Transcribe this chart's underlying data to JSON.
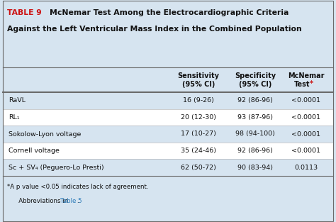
{
  "table_label": "TABLE 9",
  "title_line1": "McNemar Test Among the Electrocardiographic Criteria",
  "title_line2": "Against the Left Ventricular Mass Index in the Combined Population",
  "col_headers_line1": [
    "",
    "Sensitivity",
    "Specificity",
    "McNemar"
  ],
  "col_headers_line2": [
    "",
    "(95% CI)",
    "(95% CI)",
    "Test"
  ],
  "rows": [
    [
      "RaVL",
      "16 (9-26)",
      "92 (86-96)",
      "<0.0001"
    ],
    [
      "RL₁",
      "20 (12-30)",
      "93 (87-96)",
      "<0.0001"
    ],
    [
      "Sokolow-Lyon voltage",
      "17 (10-27)",
      "98 (94-100)",
      "<0.0001"
    ],
    [
      "Cornell voltage",
      "35 (24-46)",
      "92 (86-96)",
      "<0.0001"
    ],
    [
      "Sᴄ + SV₄ (Peguero-Lo Presti)",
      "62 (50-72)",
      "90 (83-94)",
      "0.0113"
    ]
  ],
  "footnote1": "*A p value <0.05 indicates lack of agreement.",
  "footnote2_pre": "   Abbreviations in ",
  "footnote2_link": "Table 5",
  "footnote2_post": ".",
  "bg_color": "#d6e4f0",
  "white_color": "#ffffff",
  "border_color": "#6a6a6a",
  "label_color": "#cc1111",
  "title_color": "#111111",
  "text_color": "#111111",
  "link_color": "#2979b8",
  "star_color": "#cc1111",
  "row_alt_colors": [
    "#d6e4f0",
    "#ffffff"
  ]
}
